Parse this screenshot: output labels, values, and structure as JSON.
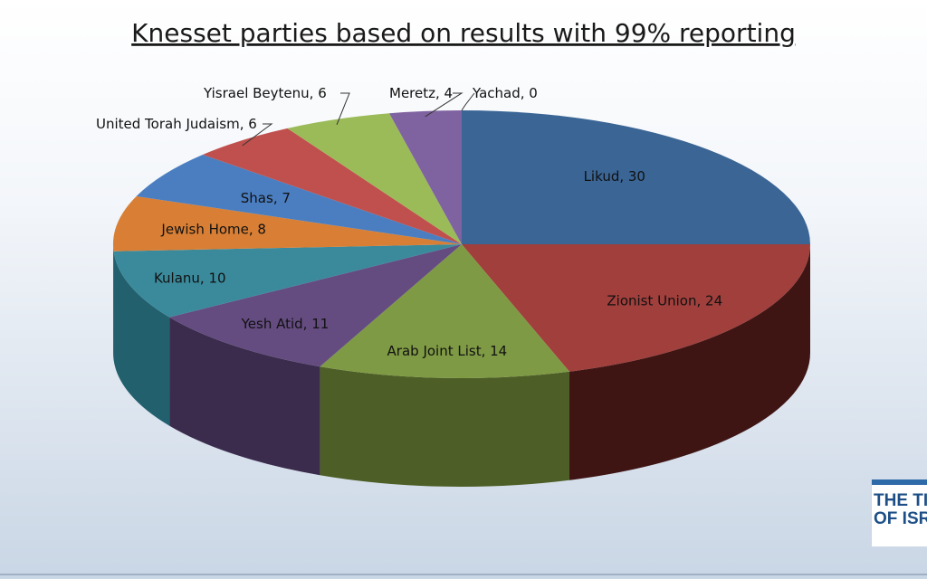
{
  "chart_data": {
    "type": "pie",
    "title": "Knesset parties based on results with 99% reporting",
    "slices": [
      {
        "label": "Likud, 30",
        "value": 30,
        "color": "#3a6595",
        "side": "#1f3b5c"
      },
      {
        "label": "Zionist Union, 24",
        "value": 24,
        "color": "#a03f3c",
        "side": "#3f1514"
      },
      {
        "label": "Arab Joint List, 14",
        "value": 14,
        "color": "#7f9a44",
        "side": "#4d5e26"
      },
      {
        "label": "Yesh Atid, 11",
        "value": 11,
        "color": "#644c80",
        "side": "#3b2c4d"
      },
      {
        "label": "Kulanu, 10",
        "value": 10,
        "color": "#3a8a9c",
        "side": "#23606e"
      },
      {
        "label": "Jewish Home, 8",
        "value": 8,
        "color": "#d87f35",
        "side": "#8f4f1c"
      },
      {
        "label": "Shas, 7",
        "value": 7,
        "color": "#4a7ec0",
        "side": "#2c5483"
      },
      {
        "label": "United Torah Judaism, 6",
        "value": 6,
        "color": "#c0504d",
        "side": "#7d2f2d"
      },
      {
        "label": "Yisrael Beytenu, 6",
        "value": 6,
        "color": "#9bbb59",
        "side": "#667d35"
      },
      {
        "label": "Meretz, 4",
        "value": 4,
        "color": "#7f62a0",
        "side": "#4f3c66"
      },
      {
        "label": "Yachad, 0",
        "value": 0,
        "color": "#4bacc6",
        "side": "#2d6c7d"
      }
    ],
    "legend": "none",
    "style": "3d-pie"
  },
  "watermark": {
    "line1": "THE TIMES",
    "line2": "OF ISRAEL"
  }
}
